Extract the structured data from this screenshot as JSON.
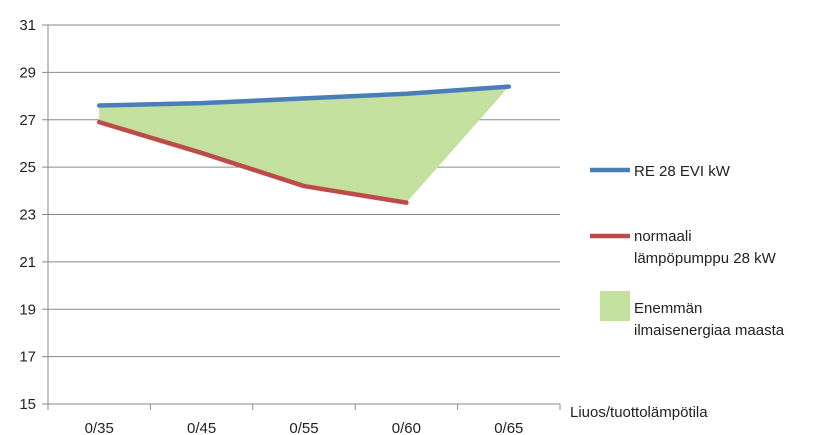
{
  "chart_data": {
    "type": "line",
    "categories": [
      "0/35",
      "0/45",
      "0/55",
      "0/60",
      "0/65"
    ],
    "xlabel": "Liuos/tuottolämpötila",
    "ylabel": "",
    "title": "",
    "ylim": [
      15,
      31
    ],
    "yticks": [
      "15",
      "17",
      "19",
      "21",
      "23",
      "25",
      "27",
      "29",
      "31"
    ],
    "grid": true,
    "legend_position": "right",
    "series": [
      {
        "name": "RE 28 EVI kW",
        "color": "#4a7ebb",
        "values": [
          27.6,
          27.7,
          27.9,
          28.1,
          28.4
        ]
      },
      {
        "name": "normaali lämpöpumppu 28 kW",
        "color": "#be4b48",
        "values": [
          26.9,
          25.6,
          24.2,
          23.5,
          null
        ]
      }
    ],
    "area": {
      "name": "Enemmän ilmaisenergiaa maasta",
      "color": "#c3e09f",
      "legend_lines": [
        "Enemmän",
        "ilmaisenergiaa maasta"
      ]
    },
    "legend": {
      "series0_lines": [
        "RE 28 EVI kW"
      ],
      "series1_lines": [
        "normaali",
        "lämpöpumppu 28 kW"
      ]
    }
  }
}
